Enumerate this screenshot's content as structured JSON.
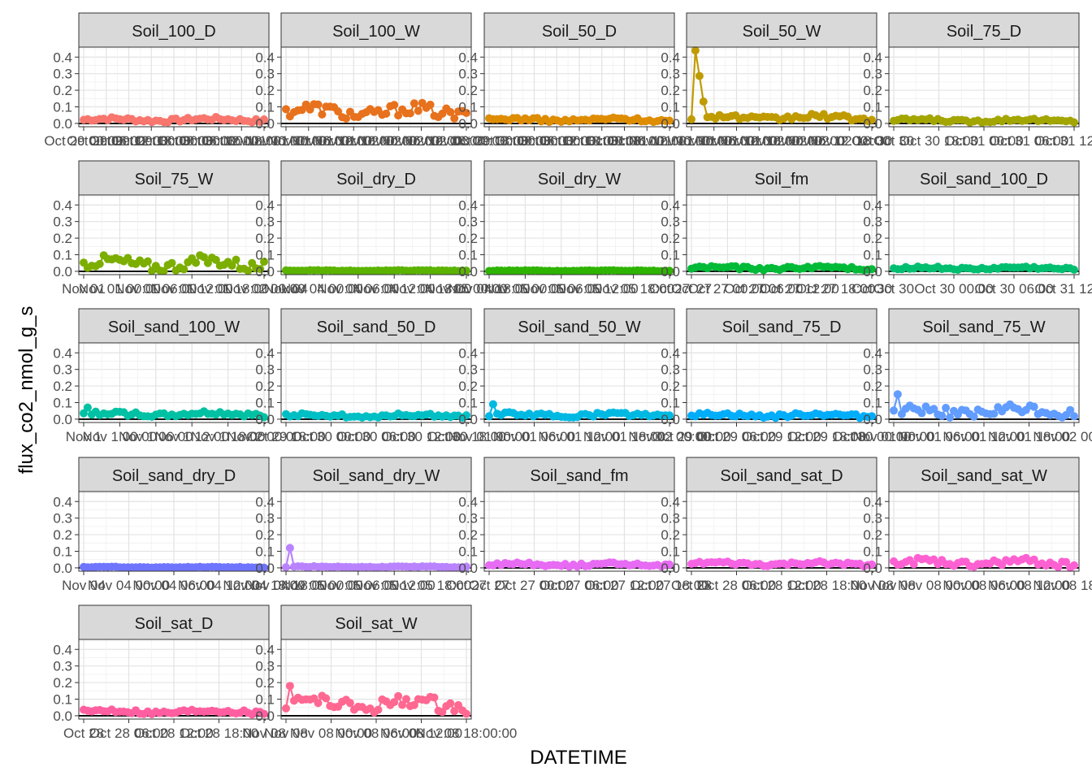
{
  "chart_data": {
    "type": "line",
    "xlabel": "DATETIME",
    "ylabel": "flux_co2_nmol_g_s",
    "ylim": [
      -0.02,
      0.46
    ],
    "y_ticks": [
      0.0,
      0.1,
      0.2,
      0.3,
      0.4
    ],
    "y_tick_labels": [
      "0.0",
      "0.1",
      "0.2",
      "0.3",
      "0.4"
    ],
    "hline_y": 0,
    "grid": true,
    "legend": "none",
    "facets": [
      {
        "name": "Soil_100_D",
        "color": "#F8766D",
        "base": 0.022,
        "amp": 0.022,
        "peak": null,
        "x_tick_labels": [
          "Oct 29 00:00",
          "Oct 29 06:00",
          "Oct 29 12:00",
          "Oct 29 18:00",
          "Oct 30 00:00",
          "Oct 30 06:00",
          "Oct 30 12:00",
          "Oct 30 18:00",
          "Nov 01 00:00"
        ]
      },
      {
        "name": "Soil_100_W",
        "color": "#E7711C",
        "base": 0.07,
        "amp": 0.075,
        "peak": null,
        "x_tick_labels": [
          "Nov 01 00:00",
          "Nov 01 06:00",
          "Nov 01 12:00",
          "Nov 01 18:00",
          "Nov 02 00:00",
          "Nov 02 06:00",
          "Nov 02 12:00",
          "Nov 02 18:00",
          "Nov 03 00:00"
        ]
      },
      {
        "name": "Soil_50_D",
        "color": "#DE8C00",
        "base": 0.022,
        "amp": 0.02,
        "peak": null,
        "x_tick_labels": [
          "Oct 29 18:00",
          "Oct 30 00:00",
          "Oct 30 06:00",
          "Oct 30 12:00",
          "Oct 30 18:00",
          "Oct 31 00:00",
          "Oct 31 06:00",
          "Oct 31 12:00",
          "Nov 01 00:00"
        ]
      },
      {
        "name": "Soil_50_W",
        "color": "#C09B00",
        "base": 0.035,
        "amp": 0.03,
        "peak": 0.44,
        "x_tick_labels": [
          "Nov 01 00:00",
          "Nov 01 06:00",
          "Nov 01 12:00",
          "Nov 01 18:00",
          "Nov 02 00:00",
          "Nov 02 06:00",
          "Nov 02 12:00",
          "Nov 02 18:00",
          "Oct 30"
        ]
      },
      {
        "name": "Soil_75_D",
        "color": "#A3A500",
        "base": 0.018,
        "amp": 0.018,
        "peak": null,
        "x_tick_labels": [
          "Oct 30",
          "Oct 30 18:00",
          "Oct 31 00:00",
          "Oct 31 06:00",
          "Oct 31 12:00"
        ]
      },
      {
        "name": "Soil_75_W",
        "color": "#7CAE00",
        "base": 0.045,
        "amp": 0.07,
        "peak": null,
        "x_tick_labels": [
          "Nov 01",
          "Nov 01 00:00",
          "Nov 01 06:00",
          "Nov 01 12:00",
          "Nov 01 18:00",
          "Nov 02 00:00"
        ]
      },
      {
        "name": "Soil_dry_D",
        "color": "#5BB300",
        "base": 0.004,
        "amp": 0.004,
        "peak": null,
        "x_tick_labels": [
          "Nov 04",
          "Nov 04 00:00",
          "Nov 04 06:00",
          "Nov 04 12:00",
          "Nov 04 18:00",
          "Nov 05 00:00"
        ]
      },
      {
        "name": "Soil_dry_W",
        "color": "#2EB400",
        "base": 0.004,
        "amp": 0.004,
        "peak": null,
        "x_tick_labels": [
          "Nov 04 18:00",
          "Nov 05 00:00",
          "Nov 05 06:00",
          "Nov 05 12:00",
          "Nov 05 18:00",
          "Oct 27"
        ]
      },
      {
        "name": "Soil_fm",
        "color": "#00BA38",
        "base": 0.02,
        "amp": 0.018,
        "peak": null,
        "x_tick_labels": [
          "Oct 27",
          "Oct 27 00:00",
          "Oct 27 06:00",
          "Oct 27 12:00",
          "Oct 27 18:00",
          "Oct 30"
        ]
      },
      {
        "name": "Soil_sand_100_D",
        "color": "#00BE70",
        "base": 0.018,
        "amp": 0.016,
        "peak": null,
        "x_tick_labels": [
          "Oct 30",
          "Oct 30 00:00",
          "Oct 30 06:00",
          "Oct 31 12:00"
        ]
      },
      {
        "name": "Soil_sand_100_W",
        "color": "#00C1A3",
        "base": 0.03,
        "amp": 0.025,
        "peak": 0.07,
        "x_tick_labels": [
          "Nov 1",
          "Nov 1 00:00",
          "Nov 1 06:00",
          "Nov 1 12:00",
          "Nov 1 18:00",
          "Nov 2 00:00"
        ]
      },
      {
        "name": "Soil_sand_50_D",
        "color": "#00BFC4",
        "base": 0.022,
        "amp": 0.018,
        "peak": null,
        "x_tick_labels": [
          "Oct 29 18:00",
          "Oct 30 00:00",
          "Oct 30 06:00",
          "Oct 30 12:00",
          "Oct 30 18:00"
        ]
      },
      {
        "name": "Soil_sand_50_W",
        "color": "#00B9E3",
        "base": 0.025,
        "amp": 0.022,
        "peak": 0.09,
        "x_tick_labels": [
          "Nov 01 00:00",
          "Nov 01 06:00",
          "Nov 01 12:00",
          "Nov 01 18:00",
          "Nov 02 00:00"
        ]
      },
      {
        "name": "Soil_sand_75_D",
        "color": "#00ADFA",
        "base": 0.024,
        "amp": 0.022,
        "peak": null,
        "x_tick_labels": [
          "Oct 29 00:00",
          "Oct 29 06:00",
          "Oct 29 12:00",
          "Oct 29 18:00",
          "Oct 30 00:00"
        ]
      },
      {
        "name": "Soil_sand_75_W",
        "color": "#619CFF",
        "base": 0.045,
        "amp": 0.06,
        "peak": 0.15,
        "x_tick_labels": [
          "Nov 01 00:00",
          "Nov 01 06:00",
          "Nov 01 12:00",
          "Nov 01 18:00",
          "Nov 02 00:00"
        ]
      },
      {
        "name": "Soil_sand_dry_D",
        "color": "#6F75FF",
        "base": 0.004,
        "amp": 0.004,
        "peak": null,
        "x_tick_labels": [
          "Nov 04",
          "Nov 04 00:00",
          "Nov 04 06:00",
          "Nov 04 12:00",
          "Nov 04 18:00"
        ]
      },
      {
        "name": "Soil_sand_dry_W",
        "color": "#B983FF",
        "base": 0.006,
        "amp": 0.005,
        "peak": 0.12,
        "x_tick_labels": [
          "Nov 04 18:00",
          "Nov 05 00:00",
          "Nov 05 06:00",
          "Nov 05 12:00",
          "Nov 05 18:00",
          "Oct 27"
        ]
      },
      {
        "name": "Soil_sand_fm",
        "color": "#E76BF3",
        "base": 0.02,
        "amp": 0.018,
        "peak": null,
        "x_tick_labels": [
          "Oct 27",
          "Oct 27 00:00",
          "Oct 27 06:00",
          "Oct 27 12:00",
          "Oct 27 18:00"
        ]
      },
      {
        "name": "Soil_sand_sat_D",
        "color": "#F564E3",
        "base": 0.024,
        "amp": 0.02,
        "peak": null,
        "x_tick_labels": [
          "Oct 28",
          "Oct 28 06:00",
          "Oct 28 12:00",
          "Oct 28 18:00",
          "Nov 08"
        ]
      },
      {
        "name": "Soil_sand_sat_W",
        "color": "#FD61D1",
        "base": 0.03,
        "amp": 0.04,
        "peak": null,
        "x_tick_labels": [
          "Nov 08",
          "Nov 08 00:00",
          "Nov 08 06:00",
          "Nov 08 12:00",
          "Nov 08 18:00"
        ]
      },
      {
        "name": "Soil_sat_D",
        "color": "#FF5FA0",
        "base": 0.025,
        "amp": 0.025,
        "peak": null,
        "x_tick_labels": [
          "Oct 28",
          "Oct 28 06:00",
          "Oct 28 12:00",
          "Oct 28 18:00",
          "Nov 08"
        ]
      },
      {
        "name": "Soil_sat_W",
        "color": "#FF6891",
        "base": 0.07,
        "amp": 0.08,
        "peak": 0.18,
        "x_tick_labels": [
          "Nov 08",
          "Nov 08 00:00",
          "Nov 08 06:00",
          "Nov 08 12:00",
          "Nov 08 18:00:00"
        ]
      }
    ]
  }
}
